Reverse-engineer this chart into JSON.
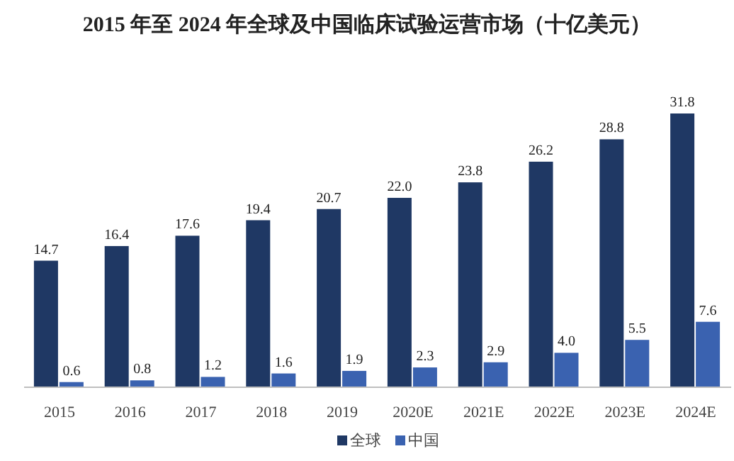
{
  "chart_data": {
    "type": "bar",
    "title": "2015 年至 2024 年全球及中国临床试验运营市场（十亿美元）",
    "categories": [
      "2015",
      "2016",
      "2017",
      "2018",
      "2019",
      "2020E",
      "2021E",
      "2022E",
      "2023E",
      "2024E"
    ],
    "series": [
      {
        "name": "全球",
        "color": "#1f3864",
        "values": [
          14.7,
          16.4,
          17.6,
          19.4,
          20.7,
          22.0,
          23.8,
          26.2,
          28.8,
          31.8
        ],
        "value_labels": [
          "14.7",
          "16.4",
          "17.6",
          "19.4",
          "20.7",
          "22.0",
          "23.8",
          "26.2",
          "28.8",
          "31.8"
        ]
      },
      {
        "name": "中国",
        "color": "#3a62b0",
        "values": [
          0.6,
          0.8,
          1.2,
          1.6,
          1.9,
          2.3,
          2.9,
          4.0,
          5.5,
          7.6
        ],
        "value_labels": [
          "0.6",
          "0.8",
          "1.2",
          "1.6",
          "1.9",
          "2.3",
          "2.9",
          "4.0",
          "5.5",
          "7.6"
        ]
      }
    ],
    "legend": "bottom"
  }
}
